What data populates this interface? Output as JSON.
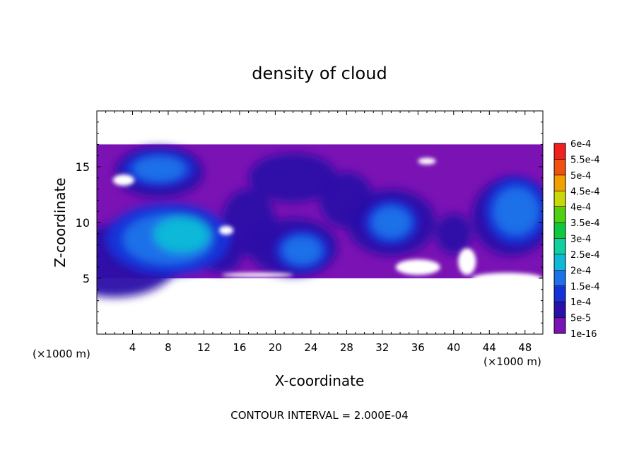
{
  "chart_data": {
    "type": "heatmap",
    "title": "density of cloud",
    "xlabel": "X-coordinate",
    "ylabel": "Z-coordinate",
    "x_unit": "(×1000 m)",
    "y_unit": "(×1000 m)",
    "xlim": [
      0,
      50
    ],
    "ylim": [
      0,
      20
    ],
    "x_ticks": [
      4,
      8,
      12,
      16,
      20,
      24,
      28,
      32,
      36,
      40,
      44,
      48
    ],
    "y_ticks": [
      5,
      10,
      15
    ],
    "footer": "CONTOUR INTERVAL = 2.000E-04",
    "colorbar": {
      "labels": [
        "1e-16",
        "5e-5",
        "1e-4",
        "1.5e-4",
        "2e-4",
        "2.5e-4",
        "3e-4",
        "3.5e-4",
        "4e-4",
        "4.5e-4",
        "5e-4",
        "5.5e-4",
        "6e-4"
      ],
      "colors": [
        "#7a12b4",
        "#2a10a8",
        "#1530d8",
        "#1f6fe8",
        "#10b8d8",
        "#10d0a0",
        "#10c840",
        "#50d010",
        "#c8d808",
        "#f0a000",
        "#f05010",
        "#f02020",
        "#f08888"
      ]
    },
    "regions": {
      "cloud_layer": {
        "x": [
          0,
          50
        ],
        "z": [
          5,
          17
        ]
      },
      "blobs": [
        {
          "cx": 8,
          "cz": 8.5,
          "rx": 7,
          "rz": 3.2,
          "level": "2e-4"
        },
        {
          "cx": 7,
          "cz": 14.8,
          "rx": 4,
          "rz": 1.6,
          "level": "1e-4"
        },
        {
          "cx": 23,
          "cz": 7.5,
          "rx": 3,
          "rz": 1.8,
          "level": "1.5e-4"
        },
        {
          "cx": 47,
          "cz": 11,
          "rx": 3.5,
          "rz": 3,
          "level": "1.5e-4"
        },
        {
          "cx": 33,
          "cz": 10,
          "rx": 3,
          "rz": 2,
          "level": "1e-4"
        }
      ]
    }
  }
}
